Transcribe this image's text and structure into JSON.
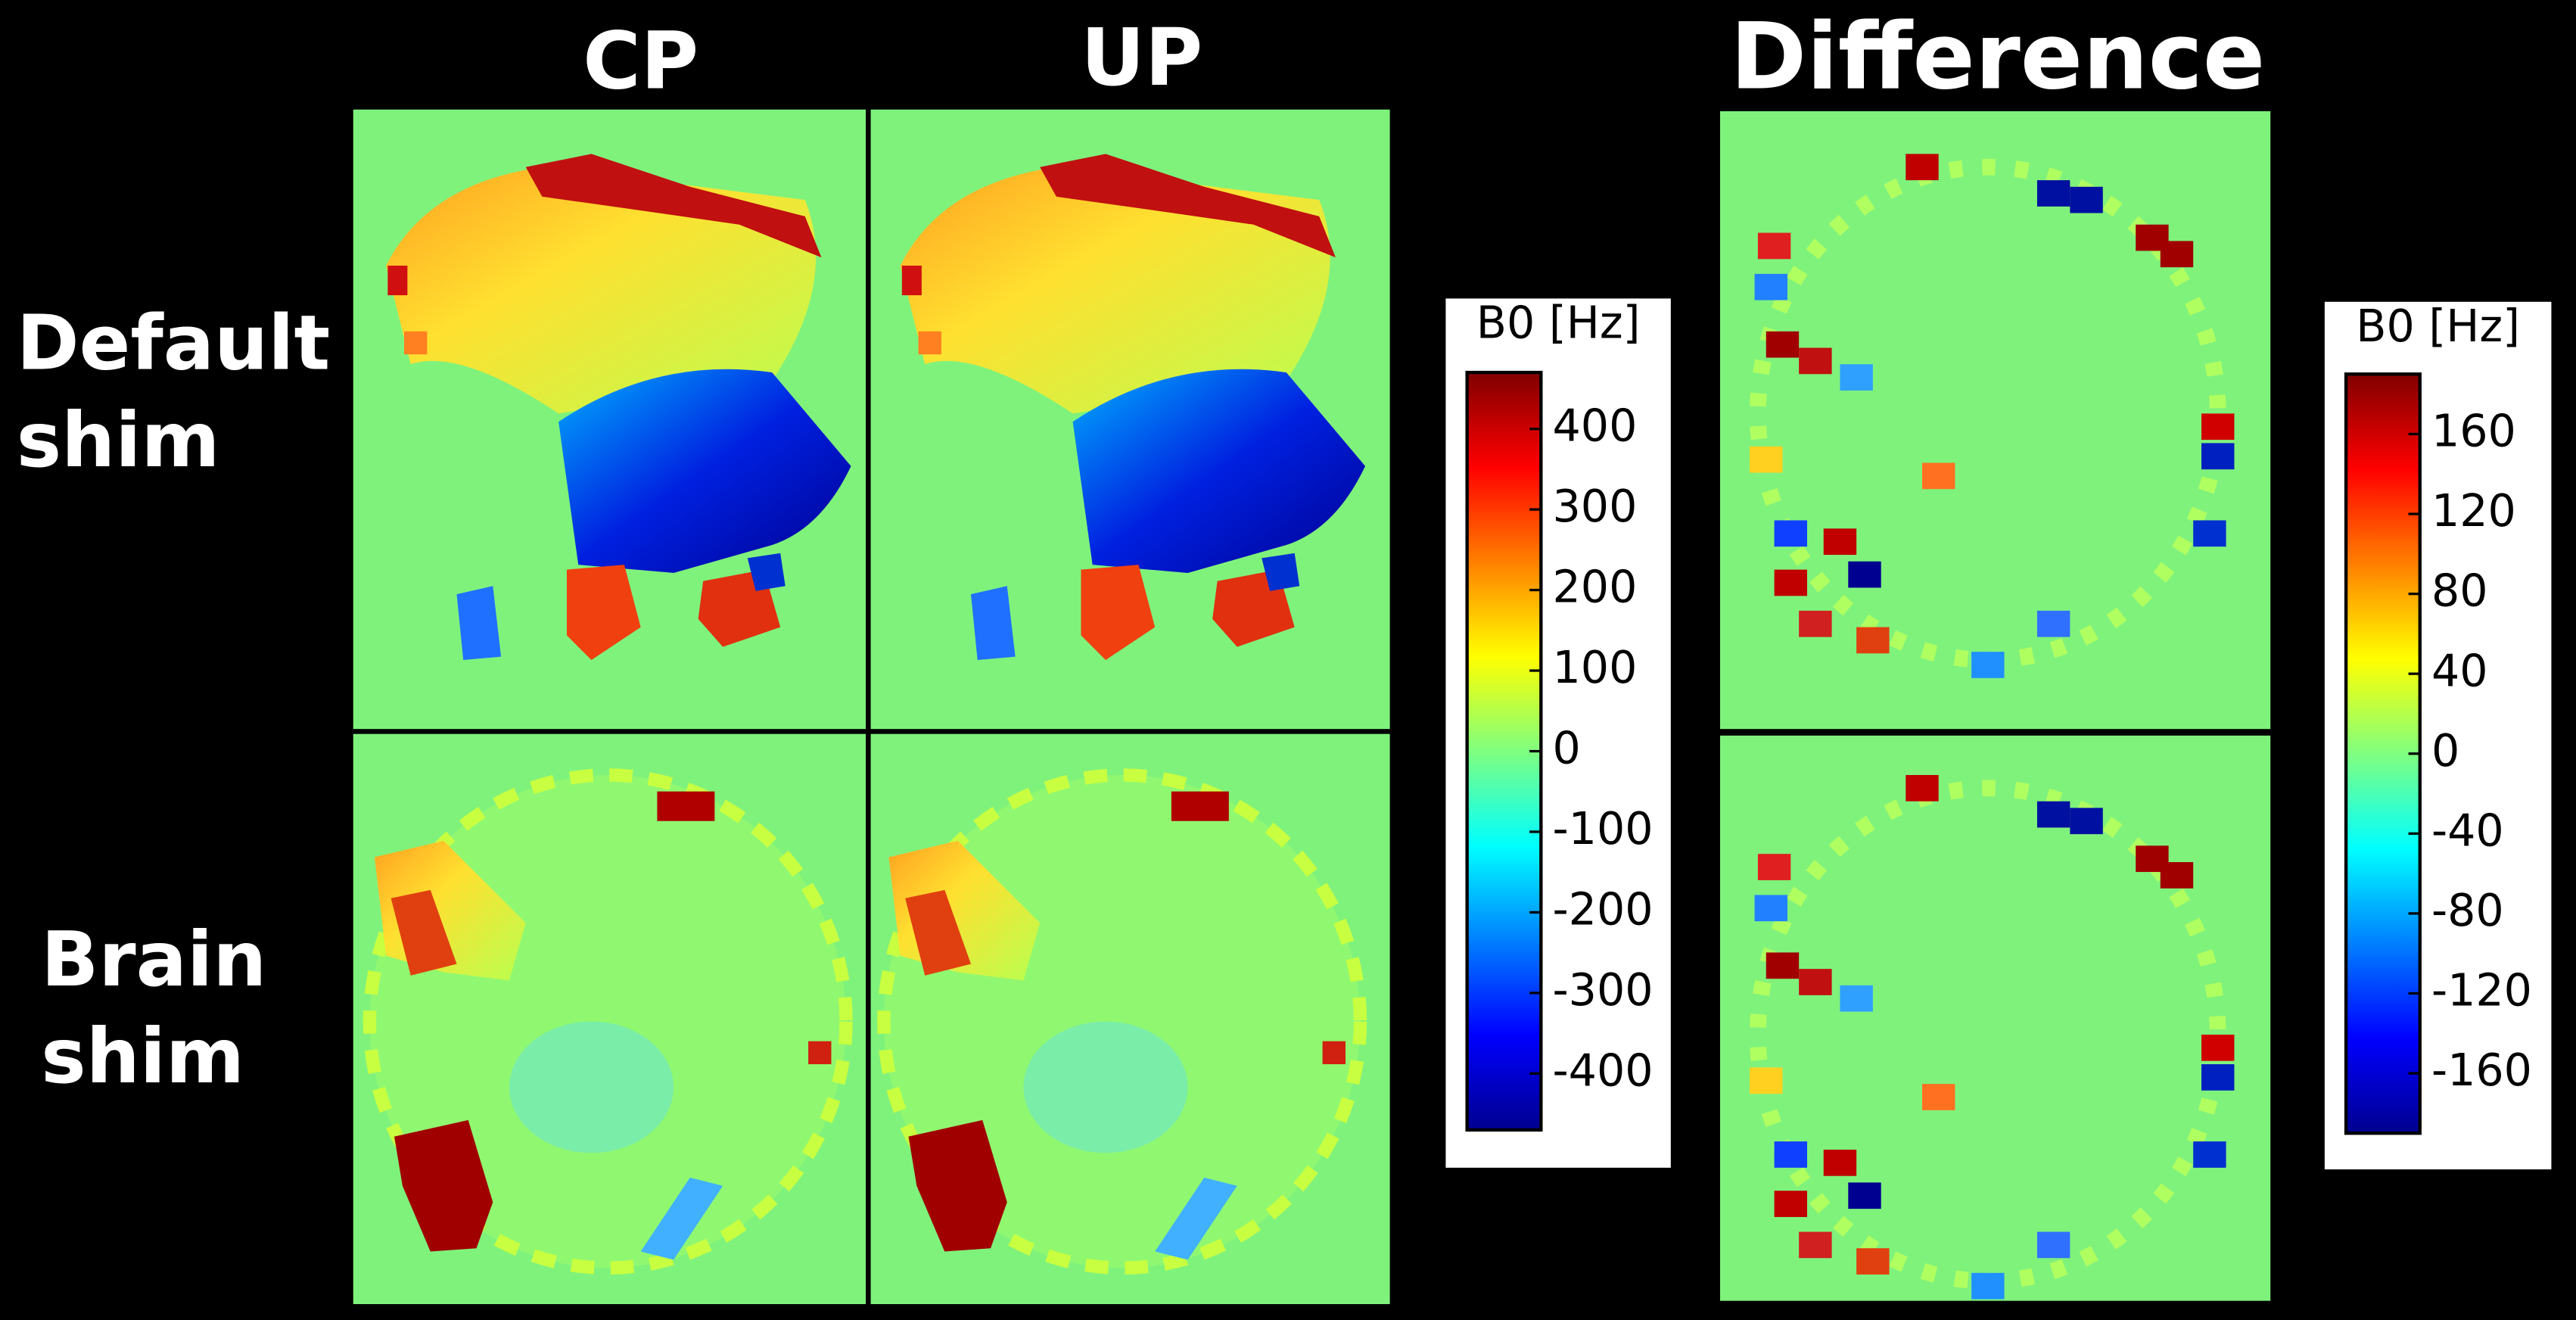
{
  "columns": [
    "CP",
    "UP",
    "Difference"
  ],
  "rows": [
    [
      "Default",
      "shim"
    ],
    [
      "Brain",
      "shim"
    ]
  ],
  "colorbars": [
    {
      "label": "B0 [Hz]",
      "clim": [
        -470,
        470
      ],
      "ticks": [
        400,
        300,
        200,
        100,
        0,
        -100,
        -200,
        -300,
        -400
      ]
    },
    {
      "label": "B0 [Hz]",
      "clim": [
        -190,
        190
      ],
      "ticks": [
        160,
        120,
        80,
        40,
        0,
        -40,
        -80,
        -120,
        -160
      ]
    }
  ]
}
